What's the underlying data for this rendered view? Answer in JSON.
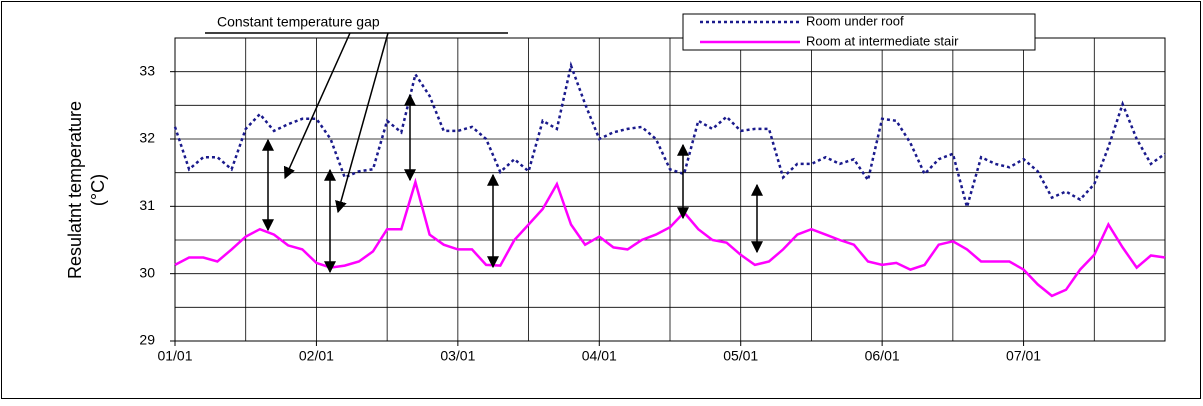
{
  "chart_data": {
    "type": "line",
    "annotations": [
      "Constant temperature gap"
    ],
    "ylabel": [
      "Resulatnt temperature",
      "(°C)"
    ],
    "x": [
      0,
      0.1,
      0.2,
      0.3,
      0.4,
      0.5,
      0.6,
      0.7,
      0.8,
      0.9,
      1,
      1.1,
      1.2,
      1.3,
      1.4,
      1.5,
      1.6,
      1.7,
      1.8,
      1.9,
      2,
      2.1,
      2.2,
      2.3,
      2.4,
      2.5,
      2.6,
      2.7,
      2.8,
      2.9,
      3,
      3.1,
      3.2,
      3.3,
      3.4,
      3.5,
      3.6,
      3.7,
      3.8,
      3.9,
      4,
      4.1,
      4.2,
      4.3,
      4.4,
      4.5,
      4.6,
      4.7,
      4.8,
      4.9,
      5,
      5.1,
      5.2,
      5.3,
      5.4,
      5.5,
      5.6,
      5.7,
      5.8,
      5.9,
      6,
      6.1,
      6.2,
      6.3,
      6.4,
      6.5,
      6.6,
      6.7,
      6.8,
      6.9,
      7
    ],
    "series": [
      {
        "name": "Room under roof",
        "color": "#1a1a8c",
        "dash": "dotted",
        "values": [
          32.18,
          31.55,
          31.73,
          31.73,
          31.55,
          32.15,
          32.37,
          32.12,
          32.22,
          32.3,
          32.3,
          32.0,
          31.43,
          31.52,
          31.55,
          32.27,
          32.1,
          32.96,
          32.64,
          32.12,
          32.12,
          32.18,
          32.0,
          31.51,
          31.7,
          31.52,
          32.27,
          32.15,
          33.09,
          32.52,
          32.0,
          32.1,
          32.15,
          32.18,
          32.0,
          31.55,
          31.48,
          32.27,
          32.15,
          32.33,
          32.12,
          32.15,
          32.15,
          31.43,
          31.63,
          31.63,
          31.73,
          31.63,
          31.7,
          31.39,
          32.3,
          32.27,
          31.94,
          31.48,
          31.7,
          31.78,
          30.99,
          31.73,
          31.63,
          31.58,
          31.7,
          31.52,
          31.13,
          31.22,
          31.1,
          31.33,
          31.88,
          32.52,
          32.0,
          31.63,
          31.78
        ]
      },
      {
        "name": "Room at intermediate stair",
        "color": "#ff00ff",
        "dash": "solid",
        "values": [
          30.13,
          30.24,
          30.24,
          30.18,
          30.36,
          30.55,
          30.66,
          30.58,
          30.42,
          30.36,
          30.16,
          30.09,
          30.12,
          30.18,
          30.33,
          30.66,
          30.66,
          31.36,
          30.58,
          30.43,
          30.36,
          30.36,
          30.13,
          30.12,
          30.5,
          30.73,
          30.96,
          31.33,
          30.73,
          30.43,
          30.55,
          30.39,
          30.36,
          30.5,
          30.58,
          30.69,
          30.91,
          30.66,
          30.5,
          30.46,
          30.28,
          30.13,
          30.18,
          30.36,
          30.58,
          30.66,
          30.58,
          30.5,
          30.43,
          30.18,
          30.13,
          30.16,
          30.06,
          30.13,
          30.43,
          30.48,
          30.36,
          30.18,
          30.18,
          30.18,
          30.06,
          29.84,
          29.67,
          29.76,
          30.06,
          30.28,
          30.73,
          30.39,
          30.09,
          30.27,
          30.24
        ]
      }
    ],
    "xlim": [
      0,
      7
    ],
    "xticks": [
      {
        "value": 0,
        "label": "01/01"
      },
      {
        "value": 1,
        "label": "02/01"
      },
      {
        "value": 2,
        "label": "03/01"
      },
      {
        "value": 3,
        "label": "04/01"
      },
      {
        "value": 4,
        "label": "05/01"
      },
      {
        "value": 5,
        "label": "06/01"
      },
      {
        "value": 6,
        "label": "07/01"
      }
    ],
    "minor_xticks": [
      0.5,
      1.5,
      2.5,
      3.5,
      4.5,
      5.5,
      6.5,
      7
    ],
    "ylim": [
      29,
      33.5
    ],
    "yticks": [
      29,
      30,
      31,
      32,
      33
    ],
    "minor_yticks": [
      29.5,
      30.5,
      31.5,
      32.5,
      33.5
    ],
    "grid": true,
    "legend": "upper right"
  }
}
